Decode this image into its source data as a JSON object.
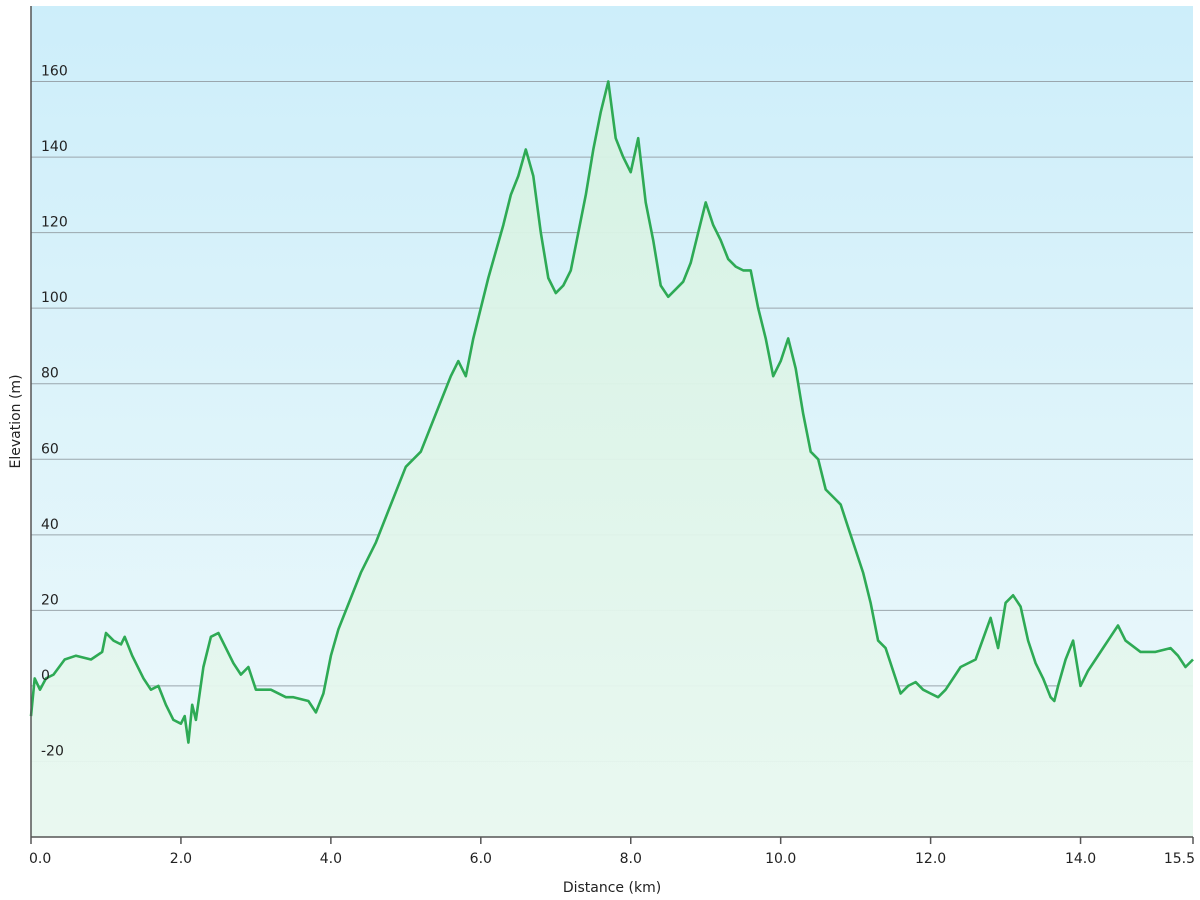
{
  "chart_data": {
    "type": "area",
    "title": "",
    "xlabel": "Distance  (km)",
    "ylabel": "Elevation (m)",
    "xlim": [
      0,
      15.5
    ],
    "ylim": [
      -40,
      180
    ],
    "grid": true,
    "x_ticks": [
      {
        "value": 0,
        "label": "0.0"
      },
      {
        "value": 2,
        "label": "2.0"
      },
      {
        "value": 4,
        "label": "4.0"
      },
      {
        "value": 6,
        "label": "6.0"
      },
      {
        "value": 8,
        "label": "8.0"
      },
      {
        "value": 10,
        "label": "10.0"
      },
      {
        "value": 12,
        "label": "12.0"
      },
      {
        "value": 14,
        "label": "14.0"
      },
      {
        "value": 15.5,
        "label": "15.5"
      }
    ],
    "y_ticks": [
      {
        "value": 160,
        "label": "160"
      },
      {
        "value": 140,
        "label": "140"
      },
      {
        "value": 120,
        "label": "120"
      },
      {
        "value": 100,
        "label": "100"
      },
      {
        "value": 80,
        "label": "80"
      },
      {
        "value": 60,
        "label": "60"
      },
      {
        "value": 40,
        "label": "40"
      },
      {
        "value": 20,
        "label": "20"
      },
      {
        "value": 0,
        "label": "0"
      },
      {
        "value": -20,
        "label": "-20"
      }
    ],
    "colors": {
      "line": "#2eaa55",
      "fill": "#dcf3e7",
      "bg_top": "#cdeefa",
      "bg_bottom": "#eef9fb"
    },
    "series": [
      {
        "x": [
          0.0,
          0.05,
          0.12,
          0.2,
          0.3,
          0.45,
          0.6,
          0.8,
          0.95,
          1.0,
          1.1,
          1.2,
          1.25,
          1.35,
          1.5,
          1.6,
          1.7,
          1.8,
          1.9,
          2.0,
          2.05,
          2.1,
          2.15,
          2.2,
          2.3,
          2.4,
          2.5,
          2.6,
          2.7,
          2.8,
          2.9,
          3.0,
          3.2,
          3.4,
          3.5,
          3.7,
          3.8,
          3.9,
          4.0,
          4.1,
          4.2,
          4.4,
          4.6,
          4.8,
          5.0,
          5.2,
          5.4,
          5.6,
          5.7,
          5.8,
          5.9,
          6.0,
          6.1,
          6.2,
          6.3,
          6.4,
          6.5,
          6.6,
          6.7,
          6.8,
          6.9,
          7.0,
          7.1,
          7.2,
          7.3,
          7.4,
          7.5,
          7.6,
          7.7,
          7.8,
          7.9,
          8.0,
          8.1,
          8.2,
          8.3,
          8.4,
          8.5,
          8.6,
          8.7,
          8.8,
          8.9,
          9.0,
          9.1,
          9.2,
          9.3,
          9.4,
          9.5,
          9.6,
          9.7,
          9.8,
          9.9,
          10.0,
          10.1,
          10.2,
          10.3,
          10.4,
          10.5,
          10.6,
          10.7,
          10.8,
          10.9,
          11.0,
          11.1,
          11.2,
          11.3,
          11.4,
          11.5,
          11.6,
          11.7,
          11.8,
          11.9,
          12.0,
          12.1,
          12.2,
          12.3,
          12.4,
          12.6,
          12.8,
          12.9,
          13.0,
          13.1,
          13.2,
          13.3,
          13.4,
          13.5,
          13.6,
          13.65,
          13.7,
          13.8,
          13.9,
          14.0,
          14.1,
          14.2,
          14.3,
          14.4,
          14.5,
          14.6,
          14.8,
          15.0,
          15.2,
          15.3,
          15.4,
          15.5
        ],
        "y": [
          -8,
          2,
          -1,
          2,
          3,
          7,
          8,
          7,
          9,
          14,
          12,
          11,
          13,
          8,
          2,
          -1,
          0,
          -5,
          -9,
          -10,
          -8,
          -15,
          -5,
          -9,
          5,
          13,
          14,
          10,
          6,
          3,
          5,
          -1,
          -1,
          -3,
          -3,
          -4,
          -7,
          -2,
          8,
          15,
          20,
          30,
          38,
          48,
          58,
          62,
          72,
          82,
          86,
          82,
          92,
          100,
          108,
          115,
          122,
          130,
          135,
          142,
          135,
          120,
          108,
          104,
          106,
          110,
          120,
          130,
          142,
          152,
          160,
          145,
          140,
          136,
          145,
          128,
          118,
          106,
          103,
          105,
          107,
          112,
          120,
          128,
          122,
          118,
          113,
          111,
          110,
          110,
          100,
          92,
          82,
          86,
          92,
          84,
          72,
          62,
          60,
          52,
          50,
          48,
          42,
          36,
          30,
          22,
          12,
          10,
          4,
          -2,
          0,
          1,
          -1,
          -2,
          -3,
          -1,
          2,
          5,
          7,
          18,
          10,
          22,
          24,
          21,
          12,
          6,
          2,
          -3,
          -4,
          0,
          7,
          12,
          0,
          4,
          7,
          10,
          13,
          16,
          12,
          9,
          9,
          10,
          8,
          5,
          7
        ]
      }
    ]
  }
}
